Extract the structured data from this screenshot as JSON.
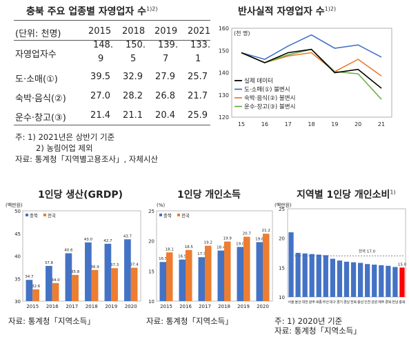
{
  "table": {
    "title": "충북 주요 업종별 자영업자 수",
    "title_sup": "1)2)",
    "header": [
      "(단위: 천명)",
      "2015",
      "2018",
      "2019",
      "2021"
    ],
    "rows": [
      {
        "label": "자영업자수",
        "values": [
          [
            "148.",
            "9"
          ],
          [
            "150.",
            "5"
          ],
          [
            "139.",
            "7"
          ],
          [
            "133.",
            "1"
          ]
        ]
      },
      {
        "label": "도·소매(①)",
        "values": [
          "39.5",
          "32.9",
          "27.9",
          "25.7"
        ]
      },
      {
        "label": "숙박·음식(②)",
        "values": [
          "27.0",
          "28.2",
          "26.8",
          "21.7"
        ]
      },
      {
        "label": "운수·창고(③)",
        "values": [
          "21.4",
          "21.1",
          "20.4",
          "25.9"
        ]
      }
    ],
    "notes": [
      "주: 1) 2021년은 상반기 기준",
      "2) 농림어업 제외",
      "자료: 통계청「지역별고용조사」, 자체시산"
    ]
  },
  "chart_data": [
    {
      "type": "line",
      "title": "반사실적 자영업자 수",
      "title_sup": "1)2)",
      "unit": "(천 명)",
      "x": [
        "15",
        "16",
        "17",
        "18",
        "19",
        "20",
        "21"
      ],
      "ylim": [
        120,
        160
      ],
      "yticks": [
        120,
        130,
        140,
        150,
        160
      ],
      "series": [
        {
          "name": "실제 데이터",
          "color": "#000000",
          "values": [
            149,
            144.5,
            149,
            150.5,
            140,
            141.5,
            133
          ]
        },
        {
          "name": "도·소매(①) 불변시",
          "color": "#4472C4",
          "values": [
            149,
            146,
            152,
            157,
            151,
            152.5,
            147
          ]
        },
        {
          "name": "숙박·음식(②) 불변시",
          "color": "#ED7D31",
          "values": [
            149,
            144.5,
            147.5,
            149,
            140.5,
            146,
            138.5
          ]
        },
        {
          "name": "운수·창고(③) 불변시",
          "color": "#70AD47",
          "values": [
            149,
            144.5,
            148,
            150.5,
            140.5,
            139.5,
            128
          ]
        }
      ]
    },
    {
      "type": "bar",
      "title": "1인당 생산(GRDP)",
      "unit": "(백만원)",
      "categories": [
        "2015",
        "2016",
        "2017",
        "2018",
        "2019",
        "2020"
      ],
      "ylim": [
        30,
        50
      ],
      "yticks": [
        30,
        35,
        40,
        45,
        50
      ],
      "series": [
        {
          "name": "충북",
          "color": "#4472C4",
          "values": [
            34.7,
            37.8,
            40.6,
            43.0,
            42.7,
            43.7
          ]
        },
        {
          "name": "전국",
          "color": "#ED7D31",
          "values": [
            32.6,
            34.0,
            35.8,
            36.9,
            37.3,
            37.4
          ]
        }
      ],
      "source": "자료: 통계청「지역소득」"
    },
    {
      "type": "bar",
      "title": "1인당 개인소득",
      "unit": "(%)",
      "categories": [
        "2015",
        "2016",
        "2017",
        "2018",
        "2019",
        "2020"
      ],
      "ylim": [
        10,
        25
      ],
      "yticks": [
        10,
        15,
        20,
        25
      ],
      "series": [
        {
          "name": "충북",
          "color": "#4472C4",
          "values": [
            16.5,
            16.9,
            17.3,
            18.4,
            19.0,
            19.8
          ]
        },
        {
          "name": "전국",
          "color": "#ED7D31",
          "values": [
            18.1,
            18.5,
            19.2,
            19.9,
            20.7,
            21.2
          ]
        }
      ],
      "source": "자료: 통계청「지역소득」"
    },
    {
      "type": "bar",
      "title": "지역별 1인당 개인소비",
      "title_sup": "1)",
      "unit": "(백만원)",
      "categories": [
        "서울",
        "울산",
        "대전",
        "광주",
        "세종",
        "부산",
        "대구",
        "경기",
        "경남",
        "전북",
        "충남",
        "인천",
        "강원",
        "제주",
        "경북",
        "전남",
        "충북"
      ],
      "ylim": [
        10,
        25
      ],
      "yticks": [
        10,
        15,
        20,
        25
      ],
      "values": [
        21.0,
        17.5,
        17.4,
        17.3,
        17.2,
        17.1,
        16.5,
        16.2,
        16.0,
        15.9,
        15.8,
        15.6,
        15.5,
        15.4,
        15.3,
        15.1,
        15.0
      ],
      "bar_color": "#4472C4",
      "highlight_color": "#FF0000",
      "highlight_index": 16,
      "national_avg": 17.0,
      "national_label": "전국 17.0",
      "highlight_label": "15.0",
      "notes": [
        "주: 1) 2020년 기준",
        "자료: 통계청「지역소득」"
      ]
    }
  ]
}
